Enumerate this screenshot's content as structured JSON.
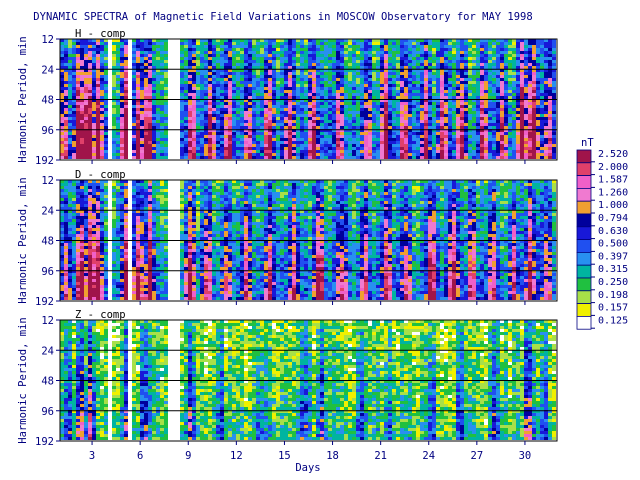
{
  "chart_data": {
    "type": "heatmap",
    "title": "DYNAMIC SPECTRA of Magnetic Field Variations in MOSCOW Observatory for MAY 1998",
    "xlabel": "Days",
    "ylabel": "Harmonic Period, min",
    "x_ticks": [
      "3",
      "6",
      "9",
      "12",
      "15",
      "18",
      "21",
      "24",
      "27",
      "30"
    ],
    "x_tick_values": [
      3,
      6,
      9,
      12,
      15,
      18,
      21,
      24,
      27,
      30
    ],
    "xlim": [
      1,
      32
    ],
    "y_ticks": [
      "12",
      "24",
      "48",
      "96",
      "192"
    ],
    "y_tick_values": [
      12,
      24,
      48,
      96,
      192
    ],
    "ylim": [
      12,
      192
    ],
    "y_scale": "log",
    "gaps_days": [
      [
        4.0,
        4.35
      ],
      [
        5.35,
        5.55
      ],
      [
        7.7,
        8.15
      ],
      [
        8.15,
        8.55
      ]
    ],
    "colorbar": {
      "unit": "nT",
      "levels": [
        2.52,
        2.0,
        1.587,
        1.26,
        1.0,
        0.794,
        0.63,
        0.5,
        0.397,
        0.315,
        0.25,
        0.198,
        0.157,
        0.125
      ],
      "labels": [
        "2.520",
        "2.000",
        "1.587",
        "1.260",
        "1.000",
        "0.794",
        "0.630",
        "0.500",
        "0.397",
        "0.315",
        "0.250",
        "0.198",
        "0.157",
        "0.125"
      ],
      "colors": [
        "#a0144a",
        "#e0406a",
        "#f060c8",
        "#f07ad0",
        "#f0a030",
        "#00009c",
        "#1818d8",
        "#2050f0",
        "#2890f0",
        "#00b4a0",
        "#20c040",
        "#a8e048",
        "#f0f000",
        "#ffffff"
      ]
    },
    "panels": [
      {
        "name": "H - comp",
        "activity": [
          {
            "day": 1.3,
            "level": 0.6
          },
          {
            "day": 2.2,
            "level": 0.95
          },
          {
            "day": 2.8,
            "level": 1.0
          },
          {
            "day": 3.4,
            "level": 0.9
          },
          {
            "day": 5.1,
            "level": 0.85
          },
          {
            "day": 5.9,
            "level": 0.8
          },
          {
            "day": 6.5,
            "level": 0.85
          },
          {
            "day": 9.2,
            "level": 0.75
          },
          {
            "day": 10.4,
            "level": 0.7
          },
          {
            "day": 11.5,
            "level": 0.65
          },
          {
            "day": 12.8,
            "level": 0.6
          },
          {
            "day": 14.0,
            "level": 0.75
          },
          {
            "day": 15.3,
            "level": 0.7
          },
          {
            "day": 16.8,
            "level": 0.8
          },
          {
            "day": 18.4,
            "level": 0.65
          },
          {
            "day": 20.2,
            "level": 0.55
          },
          {
            "day": 21.3,
            "level": 0.9
          },
          {
            "day": 22.5,
            "level": 0.75
          },
          {
            "day": 23.8,
            "level": 0.7
          },
          {
            "day": 24.9,
            "level": 0.75
          },
          {
            "day": 26.0,
            "level": 0.8
          },
          {
            "day": 27.4,
            "level": 0.7
          },
          {
            "day": 28.6,
            "level": 0.65
          },
          {
            "day": 29.8,
            "level": 0.9
          },
          {
            "day": 30.5,
            "level": 0.95
          },
          {
            "day": 31.5,
            "level": 0.6
          }
        ]
      },
      {
        "name": "D - comp",
        "activity": [
          {
            "day": 1.4,
            "level": 0.55
          },
          {
            "day": 2.3,
            "level": 0.9
          },
          {
            "day": 2.9,
            "level": 0.95
          },
          {
            "day": 3.4,
            "level": 0.85
          },
          {
            "day": 5.2,
            "level": 0.85
          },
          {
            "day": 5.9,
            "level": 0.85
          },
          {
            "day": 6.6,
            "level": 0.8
          },
          {
            "day": 9.1,
            "level": 0.8
          },
          {
            "day": 10.2,
            "level": 0.65
          },
          {
            "day": 11.4,
            "level": 0.6
          },
          {
            "day": 12.6,
            "level": 0.55
          },
          {
            "day": 14.1,
            "level": 0.6
          },
          {
            "day": 15.6,
            "level": 0.6
          },
          {
            "day": 17.2,
            "level": 0.85
          },
          {
            "day": 18.6,
            "level": 0.6
          },
          {
            "day": 20.0,
            "level": 0.55
          },
          {
            "day": 21.4,
            "level": 0.7
          },
          {
            "day": 22.6,
            "level": 0.6
          },
          {
            "day": 24.2,
            "level": 0.8
          },
          {
            "day": 25.5,
            "level": 0.85
          },
          {
            "day": 26.7,
            "level": 0.6
          },
          {
            "day": 28.0,
            "level": 0.55
          },
          {
            "day": 29.3,
            "level": 0.6
          },
          {
            "day": 30.3,
            "level": 0.7
          },
          {
            "day": 31.4,
            "level": 0.5
          }
        ]
      },
      {
        "name": "Z - comp",
        "activity": [
          {
            "day": 1.5,
            "level": 0.3
          },
          {
            "day": 2.3,
            "level": 0.55
          },
          {
            "day": 2.9,
            "level": 0.6
          },
          {
            "day": 5.2,
            "level": 0.45
          },
          {
            "day": 6.3,
            "level": 0.4
          },
          {
            "day": 9.1,
            "level": 0.45
          },
          {
            "day": 11.0,
            "level": 0.3
          },
          {
            "day": 13.5,
            "level": 0.3
          },
          {
            "day": 16.2,
            "level": 0.35
          },
          {
            "day": 17.3,
            "level": 0.4
          },
          {
            "day": 19.8,
            "level": 0.3
          },
          {
            "day": 21.5,
            "level": 0.3
          },
          {
            "day": 24.2,
            "level": 0.35
          },
          {
            "day": 26.0,
            "level": 0.3
          },
          {
            "day": 28.1,
            "level": 0.3
          },
          {
            "day": 30.2,
            "level": 0.55
          },
          {
            "day": 31.2,
            "level": 0.4
          }
        ]
      }
    ]
  }
}
